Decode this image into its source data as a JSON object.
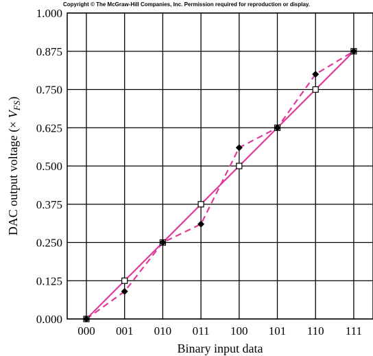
{
  "copyright": "Copyright © The McGraw-Hill Companies, Inc. Permission required for reproduction or display.",
  "chart_data": {
    "type": "line",
    "title": "",
    "xlabel": "Binary input data",
    "ylabel_prefix": "DAC output voltage (× ",
    "ylabel_var": "V",
    "ylabel_sub": "FS",
    "ylabel_suffix": ")",
    "categories": [
      "000",
      "001",
      "010",
      "011",
      "100",
      "101",
      "110",
      "111"
    ],
    "y_ticks": [
      "0.000",
      "0.125",
      "0.250",
      "0.375",
      "0.500",
      "0.625",
      "0.750",
      "0.875",
      "1.000"
    ],
    "ylim": [
      0,
      1.0
    ],
    "grid": true,
    "color": "#e0399a",
    "series": [
      {
        "style": "solid",
        "marker": "open-square",
        "values": [
          0.0,
          0.125,
          0.25,
          0.375,
          0.5,
          0.625,
          0.75,
          0.875
        ]
      },
      {
        "style": "dashed",
        "marker": "filled-diamond",
        "values": [
          0.0,
          0.09,
          0.25,
          0.31,
          0.56,
          0.625,
          0.8,
          0.875
        ]
      }
    ]
  }
}
